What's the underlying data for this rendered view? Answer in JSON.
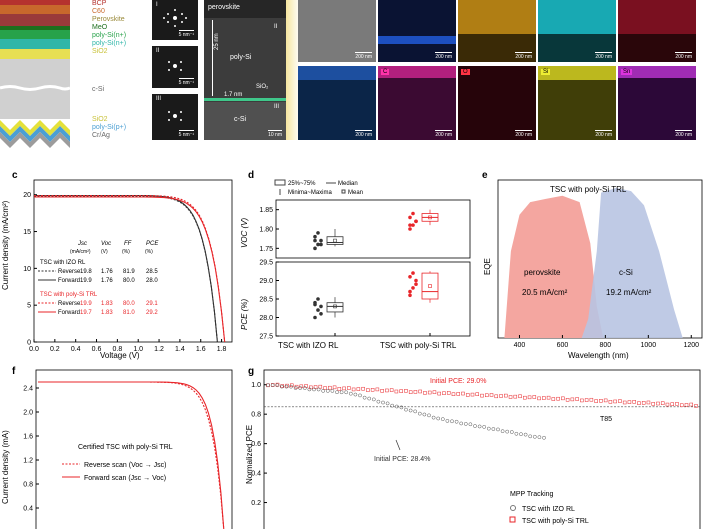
{
  "panel_labels": {
    "c": "c",
    "d": "d",
    "e": "e",
    "f": "f",
    "g": "g"
  },
  "stack_layers": [
    "BCP",
    "C60",
    "Perovskite",
    "MeO",
    "poly-Si(n+)",
    "poly-Si(n+)",
    "SiO2",
    "c-Si",
    "SiO2",
    "poly-Si(p+)",
    "Cr/Ag"
  ],
  "saed": {
    "scales": [
      "5 nm⁻¹",
      "5 nm⁻¹",
      "5 nm⁻¹"
    ],
    "labels": [
      "I",
      "II",
      "III"
    ]
  },
  "tem": {
    "top": "perovskite",
    "mid": "poly-Si",
    "thick": "25 nm",
    "sio2": "SiO₂",
    "thin": "1.7 nm",
    "bottom": "c-Si",
    "scale": "10 nm",
    "r1": "II",
    "r2": "III"
  },
  "eds": {
    "row1": [
      {
        "label": "",
        "color": "#6e6e6e",
        "scale": "200 nm"
      },
      {
        "label": "",
        "color": "#07102e",
        "scale": "200 nm"
      },
      {
        "label": "",
        "color": "#c58f16",
        "scale": "200 nm"
      },
      {
        "label": "",
        "color": "#17b3bd",
        "scale": "200 nm"
      },
      {
        "label": "",
        "color": "#8c1326",
        "scale": "200 nm"
      }
    ],
    "row2": [
      {
        "label": "Pt",
        "color": "#0a2a56",
        "lcolor": "#2288ff",
        "scale": "200 nm"
      },
      {
        "label": "C",
        "color": "#3b0a32",
        "lcolor": "#ff33aa",
        "scale": "200 nm"
      },
      {
        "label": "O",
        "color": "#26040a",
        "lcolor": "#ff3344",
        "scale": "200 nm"
      },
      {
        "label": "Si",
        "color": "#403e08",
        "lcolor": "#eeee33",
        "scale": "200 nm"
      },
      {
        "label": "Sn",
        "color": "#2c0838",
        "lcolor": "#dd33dd",
        "scale": "200 nm"
      }
    ]
  },
  "chart_data": [
    {
      "panel": "c",
      "type": "line",
      "xlabel": "Voltage (V)",
      "ylabel": "Current density (mA/cm²)",
      "xlim": [
        0.0,
        1.9
      ],
      "ylim": [
        0,
        22
      ],
      "xticks": [
        "0.0",
        "0.2",
        "0.4",
        "0.6",
        "0.8",
        "1.0",
        "1.2",
        "1.4",
        "1.6",
        "1.8"
      ],
      "yticks": [
        "0",
        "5",
        "10",
        "15",
        "20"
      ],
      "series": [
        {
          "name": "TSC with IZO RL Reverse",
          "color": "#333333",
          "dash": true,
          "jsc": 19.8,
          "voc": 1.76
        },
        {
          "name": "TSC with IZO RL Forward",
          "color": "#333333",
          "dash": false,
          "jsc": 19.9,
          "voc": 1.76
        },
        {
          "name": "TSC with poly-Si TRL Reverse",
          "color": "#e8262a",
          "dash": true,
          "jsc": 19.9,
          "voc": 1.83
        },
        {
          "name": "TSC with poly-Si TRL Forward",
          "color": "#e8262a",
          "dash": false,
          "jsc": 19.7,
          "voc": 1.83
        }
      ],
      "table": {
        "headers": [
          "Jsc",
          "Voc",
          "FF",
          "PCE"
        ],
        "units": [
          "(mA/cm²)",
          "(V)",
          "(%)",
          "(%)"
        ],
        "groups": [
          {
            "title": "TSC with IZO RL",
            "color": "#000000",
            "rows": [
              [
                "Reverse",
                "19.8",
                "1.76",
                "81.9",
                "28.5"
              ],
              [
                "Forward",
                "19.9",
                "1.76",
                "80.0",
                "28.0"
              ]
            ]
          },
          {
            "title": "TSC with poly-Si TRL",
            "color": "#e8262a",
            "rows": [
              [
                "Reverse",
                "19.9",
                "1.83",
                "80.0",
                "29.1"
              ],
              [
                "Forward",
                "19.7",
                "1.83",
                "81.0",
                "29.2"
              ]
            ]
          }
        ]
      }
    },
    {
      "panel": "d",
      "type": "box",
      "categories": [
        "TSC with IZO RL",
        "TSC with poly-Si TRL"
      ],
      "legend": [
        "25%~75%",
        "Median",
        "Minima~Maxima",
        "Mean"
      ],
      "top": {
        "ylabel": "VOC (V)",
        "ylim": [
          1.725,
          1.875
        ],
        "yticks": [
          "1.75",
          "1.80",
          "1.85"
        ],
        "boxes": [
          {
            "q1": 1.76,
            "median": 1.765,
            "q3": 1.78,
            "min": 1.755,
            "max": 1.8,
            "mean": 1.77
          },
          {
            "q1": 1.82,
            "median": 1.83,
            "q3": 1.84,
            "min": 1.81,
            "max": 1.85,
            "mean": 1.83
          }
        ],
        "points": [
          [
            1.75,
            1.76,
            1.77,
            1.78,
            1.79,
            1.76,
            1.77
          ],
          [
            1.8,
            1.81,
            1.82,
            1.83,
            1.84,
            1.82,
            1.81
          ]
        ]
      },
      "bottom": {
        "ylabel": "PCE (%)",
        "ylim": [
          27.5,
          29.5
        ],
        "yticks": [
          "27.5",
          "28.0",
          "28.5",
          "29.0",
          "29.5"
        ],
        "boxes": [
          {
            "q1": 28.15,
            "median": 28.3,
            "q3": 28.4,
            "min": 28.0,
            "max": 28.55,
            "mean": 28.3
          },
          {
            "q1": 28.5,
            "median": 28.7,
            "q3": 29.2,
            "min": 28.4,
            "max": 29.25,
            "mean": 28.85
          }
        ],
        "points": [
          [
            28.0,
            28.2,
            28.3,
            28.4,
            28.5,
            28.1,
            28.35
          ],
          [
            28.6,
            28.8,
            29.0,
            29.1,
            29.2,
            28.9,
            28.7
          ]
        ]
      }
    },
    {
      "panel": "e",
      "type": "area",
      "title": "TSC with poly-Si TRL",
      "xlabel": "Wavelength (nm)",
      "ylabel": "EQE",
      "xlim": [
        300,
        1250
      ],
      "xticks": [
        "400",
        "600",
        "800",
        "1000",
        "1200"
      ],
      "series": [
        {
          "name": "perovskite",
          "value": "20.5 mA/cm²",
          "color": "#f4a6a0"
        },
        {
          "name": "c-Si",
          "value": "19.2 mA/cm²",
          "color": "#b8c4e2"
        }
      ]
    },
    {
      "panel": "f",
      "type": "line",
      "ylabel": "Current density (mA)",
      "ylim": [
        0,
        2.7
      ],
      "yticks": [
        "0.0",
        "0.4",
        "0.8",
        "1.2",
        "1.6",
        "2.0",
        "2.4"
      ],
      "annotation": "Certified TSC with poly-Si TRL",
      "series": [
        {
          "name": "Reverse scan (Voc → Jsc)",
          "color": "#e8262a",
          "dash": true
        },
        {
          "name": "Forward scan (Jsc → Voc)",
          "color": "#e8262a",
          "dash": false
        }
      ]
    },
    {
      "panel": "g",
      "type": "scatter",
      "ylabel": "Normalized PCE",
      "ylim": [
        0,
        1.1
      ],
      "yticks": [
        "0.0",
        "0.2",
        "0.4",
        "0.6",
        "0.8",
        "1.0"
      ],
      "threshold": {
        "label": "T85",
        "value": 0.85
      },
      "annotations": [
        "Initial PCE: 29.0%",
        "Initial PCE: 28.4%"
      ],
      "legend_title": "MPP Tracking",
      "series": [
        {
          "name": "TSC with IZO RL",
          "color": "#555555",
          "end": 0.64
        },
        {
          "name": "TSC with poly-Si TRL",
          "color": "#e8262a",
          "end": 0.86
        }
      ]
    }
  ]
}
